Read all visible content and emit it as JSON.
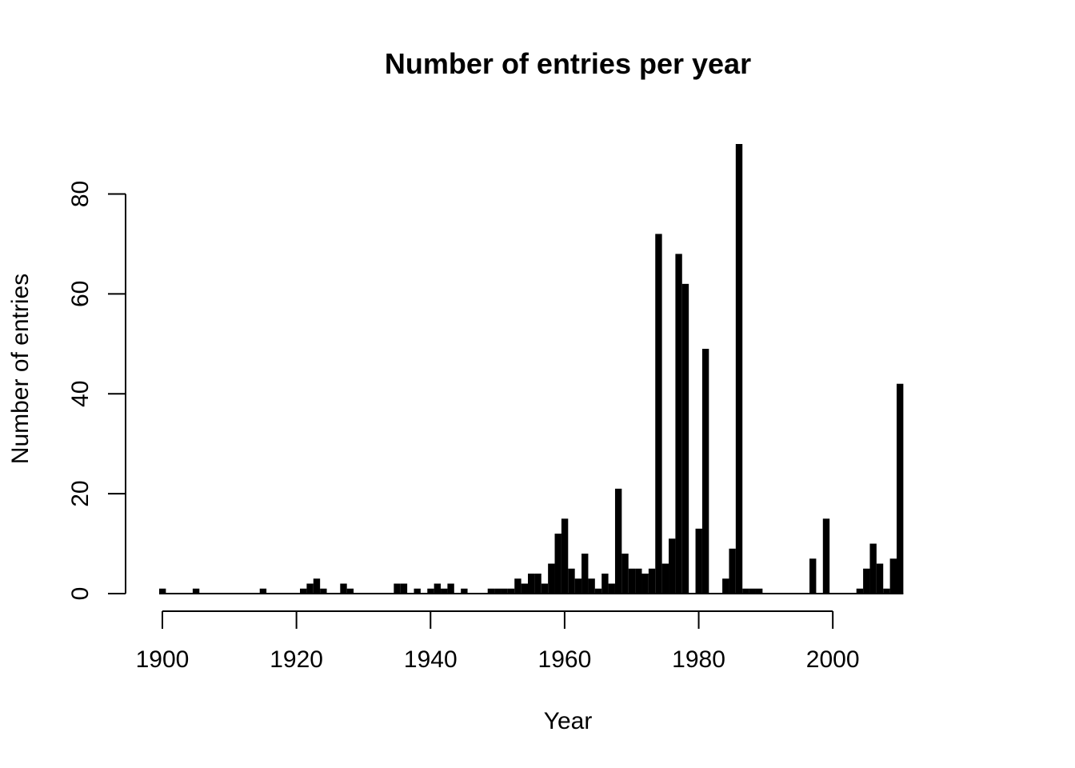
{
  "chart_data": {
    "type": "bar",
    "title": "Number of entries per year",
    "xlabel": "Year",
    "ylabel": "Number of entries",
    "xlim": [
      1900,
      2010
    ],
    "ylim": [
      0,
      90
    ],
    "x_ticks": [
      1900,
      1920,
      1940,
      1960,
      1980,
      2000
    ],
    "y_ticks": [
      0,
      20,
      40,
      60,
      80
    ],
    "grid": false,
    "bar_color": "#000000",
    "x": [
      1900,
      1905,
      1915,
      1921,
      1922,
      1923,
      1924,
      1927,
      1928,
      1935,
      1936,
      1938,
      1940,
      1941,
      1942,
      1943,
      1945,
      1949,
      1950,
      1951,
      1952,
      1953,
      1954,
      1955,
      1956,
      1957,
      1958,
      1959,
      1960,
      1961,
      1962,
      1963,
      1964,
      1965,
      1966,
      1967,
      1968,
      1969,
      1970,
      1971,
      1972,
      1973,
      1974,
      1975,
      1976,
      1977,
      1978,
      1980,
      1981,
      1984,
      1985,
      1986,
      1987,
      1988,
      1989,
      1997,
      1999,
      2004,
      2005,
      2006,
      2007,
      2008,
      2009,
      2010
    ],
    "values": [
      1,
      1,
      1,
      1,
      2,
      3,
      1,
      2,
      1,
      2,
      2,
      1,
      1,
      2,
      1,
      2,
      1,
      1,
      1,
      1,
      1,
      3,
      2,
      4,
      4,
      2,
      6,
      12,
      15,
      5,
      3,
      8,
      3,
      1,
      4,
      2,
      21,
      8,
      5,
      5,
      4,
      5,
      72,
      6,
      11,
      68,
      62,
      13,
      49,
      3,
      9,
      90,
      1,
      1,
      1,
      7,
      15,
      1,
      5,
      10,
      6,
      1,
      7,
      42
    ]
  }
}
